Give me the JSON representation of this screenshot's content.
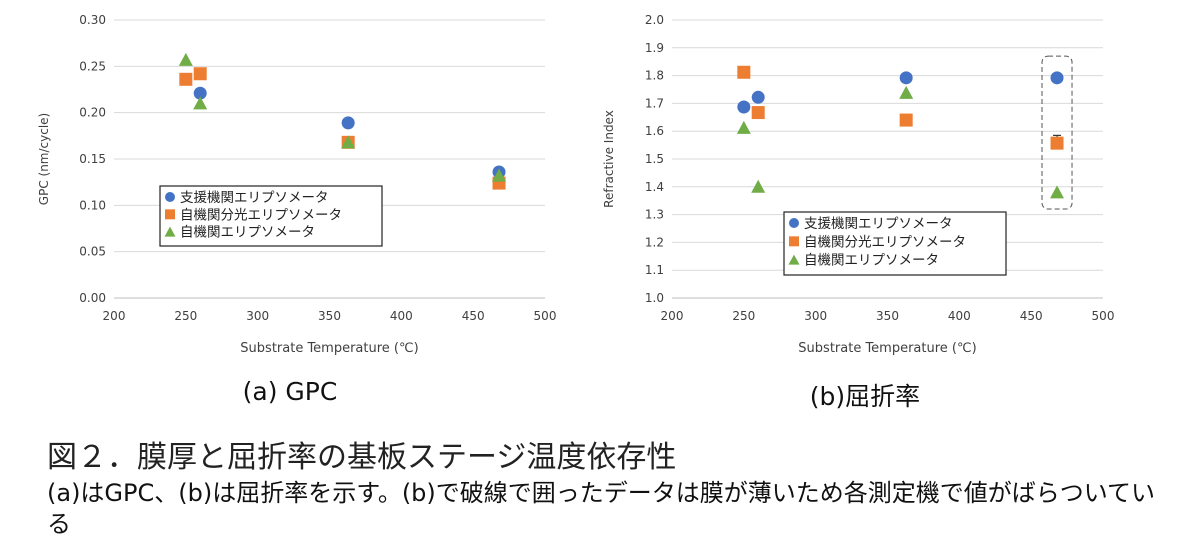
{
  "chart_data": [
    {
      "type": "scatter",
      "xlabel": "Substrate Temperature (℃)",
      "ylabel": "GPC (nm/cycle)",
      "xlim": [
        200,
        500
      ],
      "ylim": [
        0,
        0.3
      ],
      "xticks": [
        "200",
        "250",
        "300",
        "350",
        "400",
        "450",
        "500"
      ],
      "yticks": [
        "0.00",
        "0.05",
        "0.10",
        "0.15",
        "0.20",
        "0.25",
        "0.30"
      ],
      "grid": "horizontal",
      "legend": "lower-left",
      "series": [
        {
          "name": "支援機関エリプソメータ",
          "color": "#4472C4",
          "marker": "circle",
          "points": [
            [
              260,
              0.221
            ],
            [
              363,
              0.189
            ],
            [
              468,
              0.136
            ]
          ]
        },
        {
          "name": "自機関分光エリプソメータ",
          "color": "#ED7D31",
          "marker": "square",
          "points": [
            [
              250,
              0.236
            ],
            [
              260,
              0.242
            ],
            [
              363,
              0.168
            ],
            [
              468,
              0.124
            ]
          ]
        },
        {
          "name": "自機関エリプソメータ",
          "color": "#70AD47",
          "marker": "triangle",
          "points": [
            [
              250,
              0.257
            ],
            [
              260,
              0.21
            ],
            [
              363,
              0.168
            ],
            [
              468,
              0.132
            ]
          ]
        }
      ]
    },
    {
      "type": "scatter",
      "xlabel": "Substrate Temperature (℃)",
      "ylabel": "Refractive Index",
      "xlim": [
        200,
        500
      ],
      "ylim": [
        1.0,
        2.0
      ],
      "xticks": [
        "200",
        "250",
        "300",
        "350",
        "400",
        "450",
        "500"
      ],
      "yticks": [
        "1.0",
        "1.1",
        "1.2",
        "1.3",
        "1.4",
        "1.5",
        "1.6",
        "1.7",
        "1.8",
        "1.9",
        "2.0"
      ],
      "grid": "horizontal",
      "legend": "lower-center",
      "annotation": "dashed box around points at 468 ℃",
      "series": [
        {
          "name": "支援機関エリプソメータ",
          "color": "#4472C4",
          "marker": "circle",
          "points": [
            [
              250,
              1.687
            ],
            [
              260,
              1.722
            ],
            [
              363,
              1.792
            ],
            [
              468,
              1.792
            ]
          ]
        },
        {
          "name": "自機関分光エリプソメータ",
          "color": "#ED7D31",
          "marker": "square",
          "points": [
            [
              250,
              1.812
            ],
            [
              260,
              1.667
            ],
            [
              363,
              1.64
            ],
            [
              468,
              1.557
            ]
          ]
        },
        {
          "name": "自機関エリプソメータ",
          "color": "#70AD47",
          "marker": "triangle",
          "points": [
            [
              250,
              1.612
            ],
            [
              260,
              1.4
            ],
            [
              363,
              1.738
            ],
            [
              468,
              1.38
            ]
          ]
        }
      ],
      "error_bar": {
        "x": 468,
        "low": 1.537,
        "high": 1.585
      }
    }
  ],
  "captions": {
    "a": "(a) GPC",
    "b": "(b)屈折率"
  },
  "figure": {
    "title": "図２．膜厚と屈折率の基板ステージ温度依存性",
    "description": "(a)はGPC、(b)は屈折率を示す。(b)で破線で囲ったデータは膜が薄いため各測定機で値がばらついている"
  }
}
